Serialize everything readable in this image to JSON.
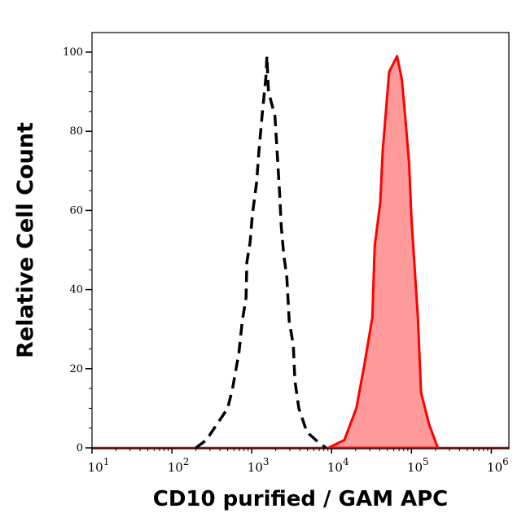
{
  "chart_data": {
    "type": "area",
    "title": "",
    "xlabel": "CD10 purified / GAM APC",
    "ylabel": "Relative Cell Count",
    "x_scale": "log",
    "xlim": [
      10,
      1660000
    ],
    "ylim": [
      0,
      105
    ],
    "grid": false,
    "x_ticks": [
      {
        "base": "10",
        "exp": "1",
        "value": 10
      },
      {
        "base": "10",
        "exp": "2",
        "value": 100
      },
      {
        "base": "10",
        "exp": "3",
        "value": 1000
      },
      {
        "base": "10",
        "exp": "4",
        "value": 10000
      },
      {
        "base": "10",
        "exp": "5",
        "value": 100000
      },
      {
        "base": "10",
        "exp": "6",
        "value": 1000000
      }
    ],
    "y_ticks": [
      "0",
      "20",
      "40",
      "60",
      "80",
      "100"
    ],
    "series": [
      {
        "style": "dashed-line",
        "color": "#000000",
        "points": [
          [
            200,
            0
          ],
          [
            270,
            2
          ],
          [
            500,
            10
          ],
          [
            575,
            15
          ],
          [
            690,
            24
          ],
          [
            760,
            32
          ],
          [
            850,
            38
          ],
          [
            870,
            47
          ],
          [
            955,
            52
          ],
          [
            1020,
            59
          ],
          [
            1150,
            67
          ],
          [
            1230,
            75
          ],
          [
            1350,
            84
          ],
          [
            1510,
            94
          ],
          [
            1550,
            99
          ],
          [
            1620,
            90
          ],
          [
            1950,
            84
          ],
          [
            2090,
            74
          ],
          [
            2240,
            64
          ],
          [
            2340,
            56
          ],
          [
            2510,
            49
          ],
          [
            2750,
            43
          ],
          [
            2950,
            32
          ],
          [
            3310,
            26
          ],
          [
            3470,
            17
          ],
          [
            3890,
            10
          ],
          [
            4900,
            4
          ],
          [
            6760,
            1.5
          ],
          [
            8510,
            0
          ]
        ]
      },
      {
        "style": "filled-area",
        "color": "#ff0000",
        "fill": "#ff9a9a",
        "points": [
          [
            9120,
            0
          ],
          [
            14450,
            2
          ],
          [
            20400,
            10
          ],
          [
            25700,
            21
          ],
          [
            32400,
            33
          ],
          [
            34700,
            51
          ],
          [
            40700,
            62
          ],
          [
            43650,
            75
          ],
          [
            52500,
            95
          ],
          [
            66100,
            99
          ],
          [
            75900,
            93
          ],
          [
            83200,
            84
          ],
          [
            93300,
            72
          ],
          [
            100000,
            58
          ],
          [
            120200,
            33
          ],
          [
            131800,
            14
          ],
          [
            166000,
            6
          ],
          [
            213800,
            0
          ]
        ]
      }
    ]
  }
}
